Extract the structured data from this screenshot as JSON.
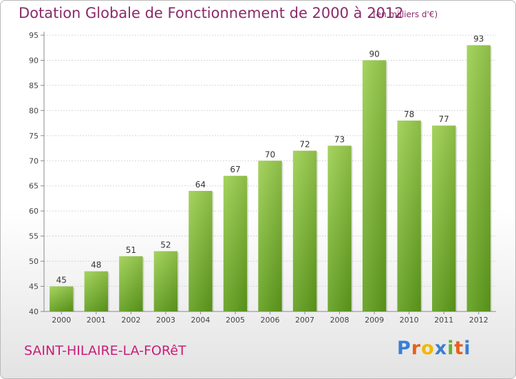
{
  "title": "Dotation Globale de Fonctionnement de 2000 à 2012",
  "subtitle": "(en milliers d'€)",
  "commune": "SAINT-HILAIRE-LA-FORêT",
  "logo": {
    "text": "Proxiti",
    "letter_colors": [
      "#3a7fd1",
      "#e8601c",
      "#f1b800",
      "#3a7fd1",
      "#5fb12f",
      "#e8601c",
      "#3a7fd1"
    ]
  },
  "chart_data": {
    "type": "bar",
    "categories": [
      "2000",
      "2001",
      "2002",
      "2003",
      "2004",
      "2005",
      "2006",
      "2007",
      "2008",
      "2009",
      "2010",
      "2011",
      "2012"
    ],
    "values": [
      45,
      48,
      51,
      52,
      64,
      67,
      70,
      72,
      73,
      90,
      78,
      77,
      93
    ],
    "ylim": [
      40,
      95
    ],
    "yticks": [
      40,
      45,
      50,
      55,
      60,
      65,
      70,
      75,
      80,
      85,
      90,
      95
    ],
    "grid": true,
    "bar_color": "#8cc63f",
    "bar_color_dark": "#5f9e1b"
  }
}
